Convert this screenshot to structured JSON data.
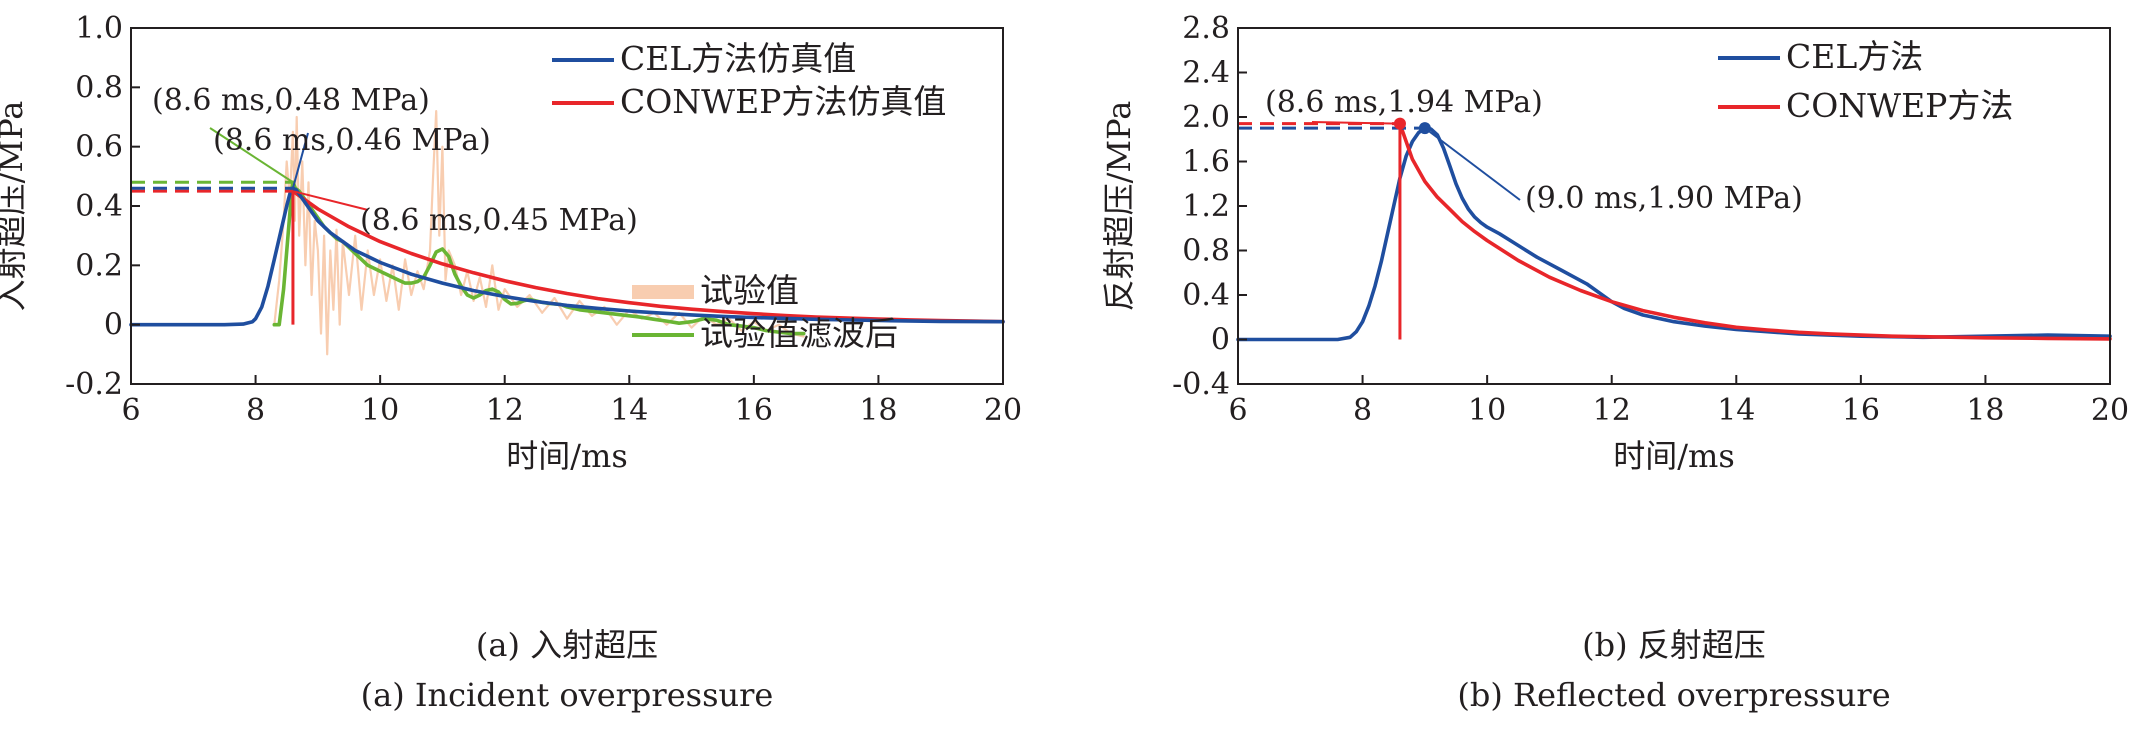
{
  "chart_data": [
    {
      "panel": "a",
      "type": "line",
      "caption_zh": "(a) 入射超压",
      "caption_en": "(a) Incident overpressure",
      "xlabel": "时间/ms",
      "ylabel": "入射超压/MPa",
      "xlim": [
        6,
        20
      ],
      "ylim": [
        -0.2,
        1.0
      ],
      "xticks": [
        6,
        8,
        10,
        12,
        14,
        16,
        18,
        20
      ],
      "yticks": [
        -0.2,
        0,
        0.2,
        0.4,
        0.6,
        0.8,
        1.0
      ],
      "ytick_labels": [
        "-0.2",
        "0",
        "0.2",
        "0.4",
        "0.6",
        "0.8",
        "1.0"
      ],
      "grid": false,
      "legend_position": "right",
      "series": [
        {
          "name": "试验值",
          "color": "#f8cdb0",
          "x": [
            8.3,
            8.38,
            8.45,
            8.5,
            8.55,
            8.6,
            8.63,
            8.66,
            8.7,
            8.75,
            8.8,
            8.85,
            8.9,
            8.95,
            9.0,
            9.05,
            9.1,
            9.15,
            9.2,
            9.25,
            9.3,
            9.35,
            9.4,
            9.5,
            9.6,
            9.7,
            9.8,
            9.9,
            10.0,
            10.1,
            10.2,
            10.3,
            10.4,
            10.5,
            10.6,
            10.7,
            10.8,
            10.85,
            10.9,
            10.95,
            11.0,
            11.05,
            11.1,
            11.2,
            11.3,
            11.4,
            11.5,
            11.6,
            11.7,
            11.8,
            11.9,
            12.0,
            12.2,
            12.4,
            12.6,
            12.8,
            13.0,
            13.2,
            13.4,
            13.6,
            13.8,
            14.0,
            14.2,
            14.4,
            14.6,
            14.8,
            15.0,
            15.2,
            15.4,
            15.6,
            15.8,
            16.0,
            16.2,
            16.4,
            16.6,
            16.8
          ],
          "y": [
            0.0,
            0.15,
            0.35,
            0.55,
            0.42,
            0.65,
            0.35,
            0.7,
            0.3,
            0.55,
            0.2,
            0.48,
            0.1,
            0.35,
            0.25,
            -0.03,
            0.3,
            -0.1,
            0.25,
            0.05,
            0.32,
            0.0,
            0.28,
            0.1,
            0.3,
            0.05,
            0.25,
            0.1,
            0.22,
            0.08,
            0.2,
            0.05,
            0.22,
            0.1,
            0.18,
            0.12,
            0.25,
            0.5,
            0.72,
            0.3,
            0.6,
            0.15,
            0.25,
            0.2,
            0.1,
            0.18,
            0.08,
            0.16,
            0.06,
            0.2,
            0.05,
            0.12,
            0.06,
            0.1,
            0.04,
            0.09,
            0.02,
            0.08,
            0.03,
            0.06,
            0.0,
            0.05,
            0.02,
            0.04,
            0.0,
            0.04,
            -0.01,
            0.03,
            0.0,
            0.02,
            -0.02,
            0.01,
            -0.02,
            0.0,
            -0.03,
            -0.04
          ]
        },
        {
          "name": "试验值滤波后",
          "color": "#6ab534",
          "x": [
            8.3,
            8.38,
            8.45,
            8.52,
            8.58,
            8.6,
            8.64,
            8.7,
            8.8,
            8.9,
            9.0,
            9.1,
            9.2,
            9.3,
            9.4,
            9.5,
            9.6,
            9.7,
            9.8,
            9.9,
            10.0,
            10.1,
            10.2,
            10.3,
            10.4,
            10.5,
            10.6,
            10.7,
            10.8,
            10.9,
            11.0,
            11.1,
            11.2,
            11.3,
            11.4,
            11.5,
            11.6,
            11.7,
            11.8,
            11.9,
            12.0,
            12.1,
            12.2,
            12.3,
            12.4,
            12.5,
            12.6,
            12.7,
            12.8,
            12.9,
            13.0,
            13.2,
            13.4,
            13.6,
            13.8,
            14.0,
            14.2,
            14.4,
            14.6,
            14.8,
            15.0,
            15.2,
            15.4,
            15.6,
            15.8,
            16.0,
            16.2,
            16.4,
            16.6,
            16.8
          ],
          "y": [
            0.0,
            0.0,
            0.12,
            0.3,
            0.45,
            0.48,
            0.46,
            0.45,
            0.42,
            0.39,
            0.36,
            0.33,
            0.31,
            0.29,
            0.28,
            0.26,
            0.24,
            0.22,
            0.2,
            0.19,
            0.18,
            0.17,
            0.16,
            0.15,
            0.14,
            0.14,
            0.145,
            0.16,
            0.2,
            0.245,
            0.255,
            0.23,
            0.17,
            0.13,
            0.1,
            0.09,
            0.1,
            0.115,
            0.12,
            0.11,
            0.085,
            0.07,
            0.072,
            0.08,
            0.085,
            0.08,
            0.075,
            0.072,
            0.07,
            0.068,
            0.06,
            0.05,
            0.045,
            0.04,
            0.035,
            0.03,
            0.025,
            0.018,
            0.012,
            0.005,
            0.01,
            0.02,
            0.015,
            0.0,
            -0.005,
            -0.01,
            -0.02,
            -0.025,
            -0.03,
            -0.03
          ]
        },
        {
          "name": "CONWEP方法仿真值",
          "color": "#e8262a",
          "x": [
            8.6,
            9.0,
            9.5,
            10.0,
            10.5,
            11.0,
            11.5,
            12.0,
            12.5,
            13.0,
            13.5,
            14.0,
            14.5,
            15.0,
            15.5,
            16.0,
            16.5,
            17.0,
            17.5,
            18.0,
            18.5,
            19.0,
            19.5,
            20.0
          ],
          "y": [
            0.45,
            0.39,
            0.33,
            0.28,
            0.24,
            0.205,
            0.175,
            0.148,
            0.125,
            0.105,
            0.088,
            0.074,
            0.062,
            0.052,
            0.044,
            0.037,
            0.031,
            0.026,
            0.022,
            0.019,
            0.016,
            0.014,
            0.012,
            0.01
          ]
        },
        {
          "name": "CEL方法仿真值",
          "color": "#1f4e9f",
          "x": [
            6.0,
            7.0,
            7.5,
            7.8,
            7.95,
            8.0,
            8.1,
            8.2,
            8.3,
            8.4,
            8.5,
            8.55,
            8.6,
            8.65,
            8.7,
            8.8,
            8.9,
            9.0,
            9.2,
            9.4,
            9.6,
            9.8,
            10.0,
            10.5,
            11.0,
            11.5,
            12.0,
            12.5,
            13.0,
            13.5,
            14.0,
            14.5,
            15.0,
            15.5,
            16.0,
            17.0,
            18.0,
            19.0,
            20.0
          ],
          "y": [
            0.0,
            0.0,
            0.0,
            0.002,
            0.01,
            0.02,
            0.06,
            0.13,
            0.22,
            0.31,
            0.4,
            0.44,
            0.46,
            0.455,
            0.44,
            0.41,
            0.38,
            0.35,
            0.31,
            0.28,
            0.25,
            0.23,
            0.21,
            0.17,
            0.14,
            0.115,
            0.095,
            0.078,
            0.065,
            0.055,
            0.046,
            0.039,
            0.033,
            0.028,
            0.024,
            0.018,
            0.014,
            0.011,
            0.01
          ]
        }
      ],
      "reference_lines": [
        {
          "color": "#e8262a",
          "y": 0.45,
          "x": 8.6
        },
        {
          "color": "#1f4e9f",
          "y": 0.46,
          "x": 8.6
        },
        {
          "color": "#6ab534",
          "y": 0.48,
          "x": 8.6
        }
      ],
      "annotations": [
        {
          "text": "(8.6 ms,0.48 MPa)",
          "color": "#6ab534",
          "x": 8.6,
          "y": 0.48
        },
        {
          "text": "(8.6 ms,0.46 MPa)",
          "color": "#1f4e9f",
          "x": 8.6,
          "y": 0.46
        },
        {
          "text": "(8.6 ms,0.45 MPa)",
          "color": "#e8262a",
          "x": 8.6,
          "y": 0.45
        }
      ]
    },
    {
      "panel": "b",
      "type": "line",
      "caption_zh": "(b) 反射超压",
      "caption_en": "(b) Reflected overpressure",
      "xlabel": "时间/ms",
      "ylabel": "反射超压/MPa",
      "xlim": [
        6,
        20
      ],
      "ylim": [
        -0.4,
        2.8
      ],
      "xticks": [
        6,
        8,
        10,
        12,
        14,
        16,
        18,
        20
      ],
      "yticks": [
        -0.4,
        0,
        0.4,
        0.8,
        1.2,
        1.6,
        2.0,
        2.4,
        2.8
      ],
      "ytick_labels": [
        "-0.4",
        "0",
        "0.4",
        "0.8",
        "1.2",
        "1.6",
        "2.0",
        "2.4",
        "2.8"
      ],
      "grid": false,
      "legend_position": "top-right",
      "series": [
        {
          "name": "CEL方法",
          "color": "#1f4e9f",
          "x": [
            6.0,
            7.0,
            7.6,
            7.8,
            7.9,
            8.0,
            8.1,
            8.2,
            8.3,
            8.4,
            8.5,
            8.6,
            8.7,
            8.8,
            8.9,
            9.0,
            9.1,
            9.2,
            9.3,
            9.4,
            9.5,
            9.6,
            9.7,
            9.8,
            9.9,
            10.0,
            10.2,
            10.4,
            10.6,
            10.8,
            11.0,
            11.2,
            11.4,
            11.6,
            11.8,
            12.0,
            12.2,
            12.5,
            13.0,
            13.5,
            14.0,
            14.5,
            15.0,
            15.5,
            16.0,
            17.0,
            18.0,
            19.0,
            20.0
          ],
          "y": [
            0.0,
            0.0,
            0.0,
            0.02,
            0.07,
            0.16,
            0.3,
            0.48,
            0.7,
            0.95,
            1.2,
            1.45,
            1.65,
            1.78,
            1.86,
            1.9,
            1.89,
            1.84,
            1.72,
            1.56,
            1.4,
            1.27,
            1.17,
            1.1,
            1.05,
            1.01,
            0.95,
            0.88,
            0.81,
            0.74,
            0.68,
            0.62,
            0.56,
            0.5,
            0.42,
            0.34,
            0.28,
            0.22,
            0.16,
            0.12,
            0.09,
            0.07,
            0.05,
            0.04,
            0.03,
            0.02,
            0.03,
            0.04,
            0.03
          ]
        },
        {
          "name": "CONWEP方法",
          "color": "#e8262a",
          "x": [
            8.6,
            8.8,
            9.0,
            9.2,
            9.4,
            9.6,
            9.8,
            10.0,
            10.5,
            11.0,
            11.5,
            12.0,
            12.5,
            13.0,
            13.5,
            14.0,
            14.5,
            15.0,
            15.5,
            16.0,
            16.5,
            17.0,
            18.0,
            19.0,
            20.0
          ],
          "y": [
            1.94,
            1.62,
            1.42,
            1.28,
            1.17,
            1.06,
            0.97,
            0.89,
            0.71,
            0.56,
            0.44,
            0.34,
            0.26,
            0.2,
            0.15,
            0.11,
            0.085,
            0.065,
            0.05,
            0.04,
            0.03,
            0.025,
            0.015,
            0.01,
            0.005
          ]
        }
      ],
      "reference_lines": [
        {
          "color": "#e8262a",
          "y": 1.94,
          "x": 8.6
        },
        {
          "color": "#1f4e9f",
          "y": 1.9,
          "x": 9.0
        }
      ],
      "markers": [
        {
          "color": "#e8262a",
          "x": 8.6,
          "y": 1.94
        },
        {
          "color": "#1f4e9f",
          "x": 9.0,
          "y": 1.9
        }
      ],
      "annotations": [
        {
          "text": "(8.6 ms,1.94 MPa)",
          "color": "#e8262a",
          "x": 8.6,
          "y": 1.94
        },
        {
          "text": "(9.0 ms,1.90 MPa)",
          "color": "#1f4e9f",
          "x": 9.0,
          "y": 1.9
        }
      ]
    }
  ]
}
